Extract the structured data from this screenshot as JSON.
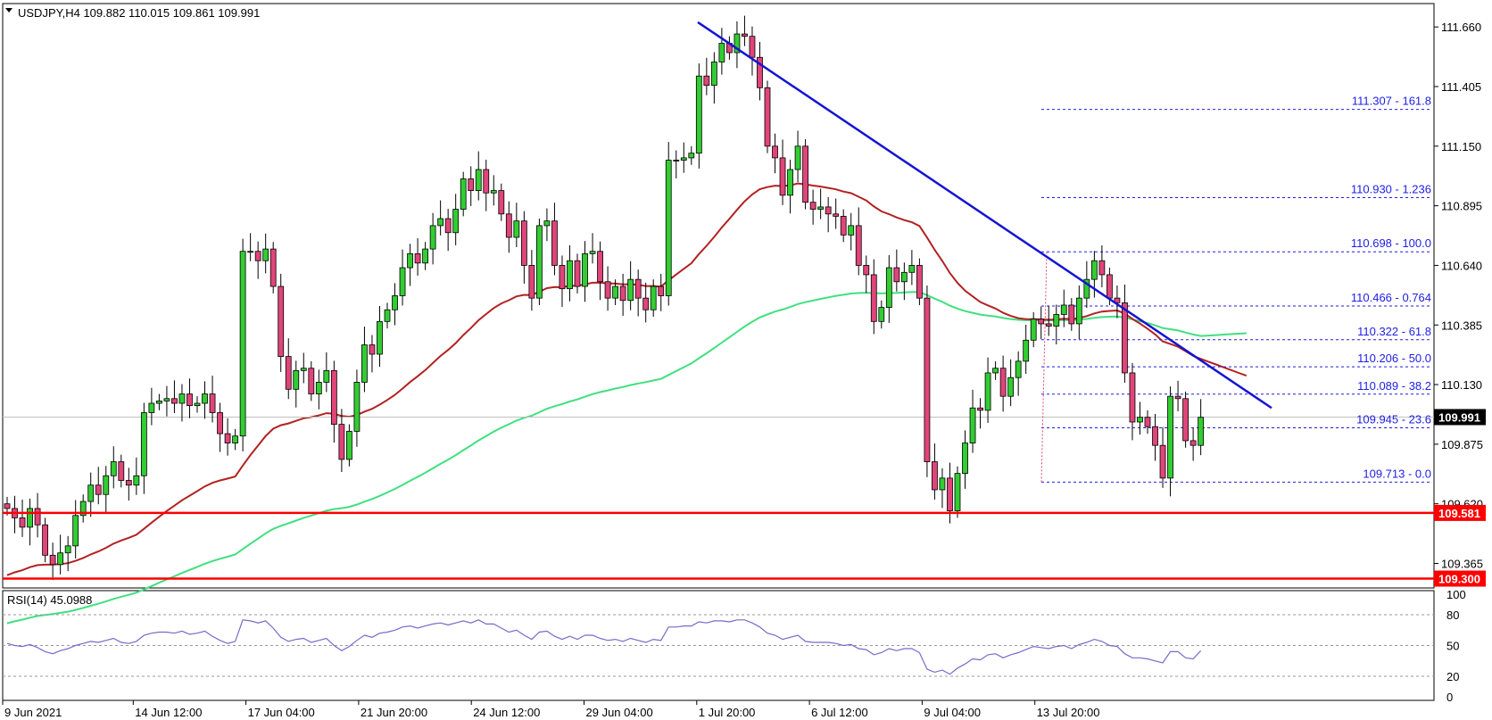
{
  "header": {
    "title": "USDJPY,H4  109.882 110.015 109.861 109.991"
  },
  "colors": {
    "bull": "#32cd32",
    "bear": "#e0457a",
    "ma_red": "#b22222",
    "ma_green": "#40e080",
    "trendline": "#1414d2",
    "support": "#ff0000",
    "fib": "#1e1ee6",
    "rsi": "#7b68c8"
  },
  "chart_data": {
    "type": "candlestick",
    "symbol": "USDJPY",
    "timeframe": "H4",
    "ylim": [
      109.26,
      111.76
    ],
    "y_ticks": [
      "111.660",
      "111.405",
      "111.150",
      "110.895",
      "110.640",
      "110.385",
      "110.130",
      "109.875",
      "109.620",
      "109.365"
    ],
    "x_labels": [
      "9 Jun 2021",
      "14 Jun 12:00",
      "17 Jun 04:00",
      "21 Jun 20:00",
      "24 Jun 12:00",
      "29 Jun 04:00",
      "1 Jul 20:00",
      "6 Jul 12:00",
      "9 Jul 04:00",
      "13 Jul 20:00"
    ],
    "current_price": "109.991",
    "closes": [
      109.6,
      109.56,
      109.52,
      109.6,
      109.53,
      109.4,
      109.36,
      109.41,
      109.44,
      109.57,
      109.63,
      109.7,
      109.66,
      109.74,
      109.8,
      109.72,
      109.7,
      109.74,
      110.01,
      110.05,
      110.06,
      110.07,
      110.05,
      110.09,
      110.04,
      110.05,
      110.09,
      110.01,
      109.92,
      109.88,
      109.91,
      110.7,
      110.7,
      110.66,
      110.71,
      110.55,
      110.25,
      110.11,
      110.19,
      110.2,
      110.09,
      110.14,
      110.19,
      109.96,
      109.81,
      109.93,
      110.14,
      110.3,
      110.26,
      110.4,
      110.45,
      110.51,
      110.63,
      110.69,
      110.65,
      110.71,
      110.81,
      110.84,
      110.78,
      110.88,
      111.01,
      110.96,
      111.05,
      110.95,
      110.96,
      110.86,
      110.76,
      110.83,
      110.64,
      110.5,
      110.81,
      110.83,
      110.64,
      110.54,
      110.66,
      110.55,
      110.69,
      110.7,
      110.57,
      110.5,
      110.55,
      110.49,
      110.58,
      110.5,
      110.45,
      110.55,
      110.51,
      111.09,
      111.09,
      111.1,
      111.12,
      111.45,
      111.41,
      111.51,
      111.59,
      111.55,
      111.63,
      111.62,
      111.53,
      111.4,
      111.15,
      111.1,
      110.94,
      111.05,
      111.15,
      110.91,
      110.88,
      110.89,
      110.86,
      110.85,
      110.77,
      110.81,
      110.64,
      110.6,
      110.4,
      110.46,
      110.63,
      110.57,
      110.61,
      110.64,
      110.5,
      109.8,
      109.68,
      109.73,
      109.59,
      109.75,
      109.88,
      110.03,
      110.02,
      110.18,
      110.2,
      110.08,
      110.16,
      110.23,
      110.32,
      110.41,
      110.39,
      110.38,
      110.43,
      110.47,
      110.39,
      110.5,
      110.58,
      110.66,
      110.6,
      110.5,
      110.48,
      110.18,
      109.97,
      109.99,
      109.95,
      109.87,
      109.73,
      110.08,
      110.07,
      109.89,
      109.87,
      109.99
    ]
  },
  "fib_levels": [
    {
      "price": 111.307,
      "label": "111.307 - 161.8"
    },
    {
      "price": 110.93,
      "label": "110.930 - 1.236"
    },
    {
      "price": 110.698,
      "label": "110.698 - 100.0"
    },
    {
      "price": 110.466,
      "label": "110.466 - 0.764"
    },
    {
      "price": 110.322,
      "label": "110.322 - 61.8"
    },
    {
      "price": 110.206,
      "label": "110.206 - 50.0"
    },
    {
      "price": 110.089,
      "label": "110.089 - 38.2"
    },
    {
      "price": 109.945,
      "label": "109.945 - 23.6"
    },
    {
      "price": 109.713,
      "label": "109.713 - 0.0"
    }
  ],
  "support_levels": [
    {
      "price": 109.581,
      "label": "109.581"
    },
    {
      "price": 109.3,
      "label": "109.300"
    }
  ],
  "trendline": {
    "from": [
      111.68
    ],
    "to": [
      110.03
    ]
  },
  "rsi": {
    "title": "RSI(14) 45.0988",
    "y_ticks": [
      "100",
      "80",
      "50",
      "20",
      "0"
    ],
    "values": [
      52,
      50,
      49,
      51,
      48,
      44,
      42,
      45,
      47,
      50,
      52,
      54,
      53,
      55,
      57,
      53,
      52,
      54,
      60,
      62,
      63,
      63,
      62,
      64,
      61,
      62,
      64,
      59,
      55,
      52,
      54,
      75,
      74,
      72,
      74,
      67,
      58,
      54,
      56,
      57,
      53,
      55,
      57,
      50,
      45,
      49,
      55,
      60,
      58,
      62,
      63,
      65,
      68,
      69,
      67,
      69,
      71,
      72,
      70,
      72,
      74,
      72,
      75,
      71,
      71,
      67,
      63,
      65,
      60,
      56,
      63,
      64,
      59,
      56,
      59,
      56,
      60,
      60,
      57,
      55,
      56,
      54,
      57,
      55,
      53,
      56,
      55,
      68,
      68,
      69,
      69,
      73,
      72,
      74,
      74,
      73,
      75,
      75,
      72,
      68,
      62,
      60,
      56,
      58,
      60,
      54,
      53,
      53,
      53,
      52,
      50,
      51,
      47,
      46,
      41,
      43,
      47,
      45,
      47,
      47,
      43,
      27,
      24,
      26,
      22,
      28,
      32,
      37,
      36,
      41,
      42,
      38,
      41,
      43,
      46,
      49,
      48,
      47,
      49,
      50,
      47,
      51,
      53,
      56,
      54,
      50,
      49,
      42,
      38,
      38,
      37,
      35,
      33,
      44,
      44,
      38,
      37,
      45
    ]
  }
}
